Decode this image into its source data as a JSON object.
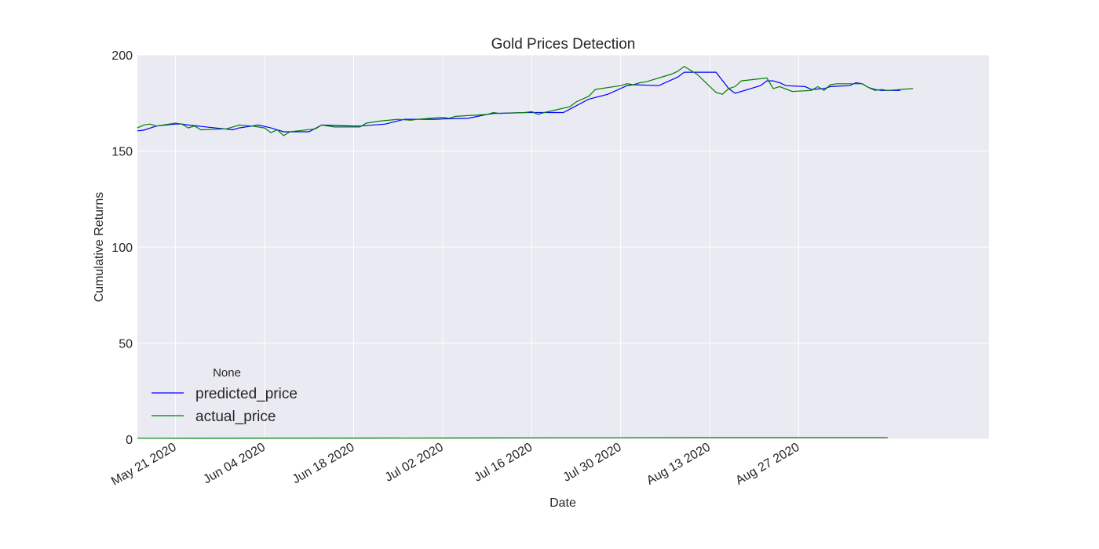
{
  "chart_data": {
    "type": "line",
    "title": "Gold Prices Detection",
    "xlabel": "Date",
    "ylabel": "Cumulative Returns",
    "xlim": [
      "2020-05-15",
      "2020-09-08"
    ],
    "ylim": [
      0,
      200
    ],
    "yticks": [
      0,
      50,
      100,
      150,
      200
    ],
    "xticks": [
      {
        "date": "2020-05-21",
        "label": "May 21 2020"
      },
      {
        "date": "2020-06-04",
        "label": "Jun 04 2020"
      },
      {
        "date": "2020-06-18",
        "label": "Jun 18 2020"
      },
      {
        "date": "2020-07-02",
        "label": "Jul 02 2020"
      },
      {
        "date": "2020-07-16",
        "label": "Jul 16 2020"
      },
      {
        "date": "2020-07-30",
        "label": "Jul 30 2020"
      },
      {
        "date": "2020-08-13",
        "label": "Aug 13 2020"
      },
      {
        "date": "2020-08-27",
        "label": "Aug 27 2020"
      }
    ],
    "grid": true,
    "legend": {
      "title": "None",
      "placement": "lower-left"
    },
    "series": [
      {
        "name": "predicted_price",
        "color": "#0000ff",
        "points": [
          [
            "2020-05-15",
            160.5
          ],
          [
            "2020-05-16",
            160.8
          ],
          [
            "2020-05-18",
            163.0
          ],
          [
            "2020-05-21",
            164.0
          ],
          [
            "2020-05-22",
            164.0
          ],
          [
            "2020-05-23",
            163.5
          ],
          [
            "2020-05-30",
            161.0
          ],
          [
            "2020-05-31",
            162.0
          ],
          [
            "2020-06-02",
            163.0
          ],
          [
            "2020-06-03",
            163.5
          ],
          [
            "2020-06-05",
            162.0
          ],
          [
            "2020-06-07",
            160.0
          ],
          [
            "2020-06-11",
            160.0
          ],
          [
            "2020-06-13",
            163.5
          ],
          [
            "2020-06-18",
            163.0
          ],
          [
            "2020-06-19",
            163.0
          ],
          [
            "2020-06-23",
            164.0
          ],
          [
            "2020-06-26",
            166.5
          ],
          [
            "2020-07-01",
            166.5
          ],
          [
            "2020-07-02",
            166.7
          ],
          [
            "2020-07-06",
            167.0
          ],
          [
            "2020-07-09",
            169.0
          ],
          [
            "2020-07-10",
            169.5
          ],
          [
            "2020-07-15",
            170.0
          ],
          [
            "2020-07-16",
            170.0
          ],
          [
            "2020-07-19",
            170.0
          ],
          [
            "2020-07-21",
            170.0
          ],
          [
            "2020-07-25",
            177.0
          ],
          [
            "2020-07-28",
            179.5
          ],
          [
            "2020-07-31",
            184.0
          ],
          [
            "2020-08-01",
            184.5
          ],
          [
            "2020-08-05",
            184.0
          ],
          [
            "2020-08-08",
            188.5
          ],
          [
            "2020-08-09",
            191.0
          ],
          [
            "2020-08-10",
            191.0
          ],
          [
            "2020-08-14",
            191.0
          ],
          [
            "2020-08-16",
            182.5
          ],
          [
            "2020-08-17",
            180.0
          ],
          [
            "2020-08-21",
            184.0
          ],
          [
            "2020-08-22",
            186.5
          ],
          [
            "2020-08-23",
            186.5
          ],
          [
            "2020-08-24",
            185.5
          ],
          [
            "2020-08-25",
            184.0
          ],
          [
            "2020-08-28",
            183.5
          ],
          [
            "2020-08-29",
            182.0
          ],
          [
            "2020-08-31",
            182.5
          ],
          [
            "2020-09-01",
            183.5
          ],
          [
            "2020-09-04",
            184.0
          ],
          [
            "2020-09-05",
            185.5
          ],
          [
            "2020-09-06",
            185.0
          ],
          [
            "2020-09-07",
            183.0
          ],
          [
            "2020-09-08",
            182.0
          ],
          [
            "2020-09-09",
            181.5
          ],
          [
            "2020-09-12",
            181.5
          ]
        ]
      },
      {
        "name": "actual_price",
        "color": "#008000",
        "points": [
          [
            "2020-05-15",
            162.0
          ],
          [
            "2020-05-16",
            163.5
          ],
          [
            "2020-05-17",
            164.0
          ],
          [
            "2020-05-18",
            163.0
          ],
          [
            "2020-05-21",
            164.5
          ],
          [
            "2020-05-22",
            164.0
          ],
          [
            "2020-05-23",
            162.0
          ],
          [
            "2020-05-24",
            163.0
          ],
          [
            "2020-05-25",
            161.0
          ],
          [
            "2020-05-29",
            161.5
          ],
          [
            "2020-05-30",
            162.5
          ],
          [
            "2020-05-31",
            163.5
          ],
          [
            "2020-06-02",
            163.0
          ],
          [
            "2020-06-04",
            162.0
          ],
          [
            "2020-06-05",
            159.5
          ],
          [
            "2020-06-06",
            161.0
          ],
          [
            "2020-06-07",
            158.0
          ],
          [
            "2020-06-08",
            160.0
          ],
          [
            "2020-06-12",
            161.5
          ],
          [
            "2020-06-13",
            163.5
          ],
          [
            "2020-06-15",
            162.5
          ],
          [
            "2020-06-19",
            162.5
          ],
          [
            "2020-06-20",
            164.5
          ],
          [
            "2020-06-22",
            165.5
          ],
          [
            "2020-06-25",
            166.5
          ],
          [
            "2020-06-27",
            166.0
          ],
          [
            "2020-06-28",
            166.5
          ],
          [
            "2020-07-02",
            167.5
          ],
          [
            "2020-07-03",
            167.0
          ],
          [
            "2020-07-04",
            168.0
          ],
          [
            "2020-07-09",
            169.0
          ],
          [
            "2020-07-10",
            170.0
          ],
          [
            "2020-07-11",
            169.5
          ],
          [
            "2020-07-15",
            170.0
          ],
          [
            "2020-07-16",
            170.5
          ],
          [
            "2020-07-17",
            169.0
          ],
          [
            "2020-07-18",
            170.0
          ],
          [
            "2020-07-22",
            173.0
          ],
          [
            "2020-07-23",
            175.5
          ],
          [
            "2020-07-25",
            178.5
          ],
          [
            "2020-07-26",
            182.0
          ],
          [
            "2020-07-30",
            184.0
          ],
          [
            "2020-07-31",
            185.0
          ],
          [
            "2020-08-01",
            184.5
          ],
          [
            "2020-08-02",
            185.5
          ],
          [
            "2020-08-03",
            186.0
          ],
          [
            "2020-08-07",
            190.0
          ],
          [
            "2020-08-08",
            191.5
          ],
          [
            "2020-08-09",
            194.0
          ],
          [
            "2020-08-10",
            192.0
          ],
          [
            "2020-08-11",
            190.0
          ],
          [
            "2020-08-14",
            180.5
          ],
          [
            "2020-08-15",
            179.5
          ],
          [
            "2020-08-16",
            182.5
          ],
          [
            "2020-08-17",
            183.5
          ],
          [
            "2020-08-18",
            186.5
          ],
          [
            "2020-08-22",
            188.0
          ],
          [
            "2020-08-23",
            182.5
          ],
          [
            "2020-08-24",
            183.5
          ],
          [
            "2020-08-26",
            181.0
          ],
          [
            "2020-08-29",
            181.5
          ],
          [
            "2020-08-30",
            183.5
          ],
          [
            "2020-08-31",
            181.5
          ],
          [
            "2020-09-01",
            184.5
          ],
          [
            "2020-09-02",
            185.0
          ],
          [
            "2020-09-06",
            185.0
          ],
          [
            "2020-09-07",
            183.0
          ],
          [
            "2020-09-08",
            181.5
          ],
          [
            "2020-09-09",
            182.0
          ],
          [
            "2020-09-10",
            181.5
          ],
          [
            "2020-09-12",
            182.0
          ],
          [
            "2020-09-14",
            182.5
          ]
        ]
      },
      {
        "name": "",
        "color": "#008000",
        "points": [
          [
            "2020-05-15",
            0.5
          ],
          [
            "2020-07-01",
            0.6
          ],
          [
            "2020-08-09",
            0.8
          ],
          [
            "2020-09-10",
            0.8
          ]
        ]
      }
    ]
  }
}
